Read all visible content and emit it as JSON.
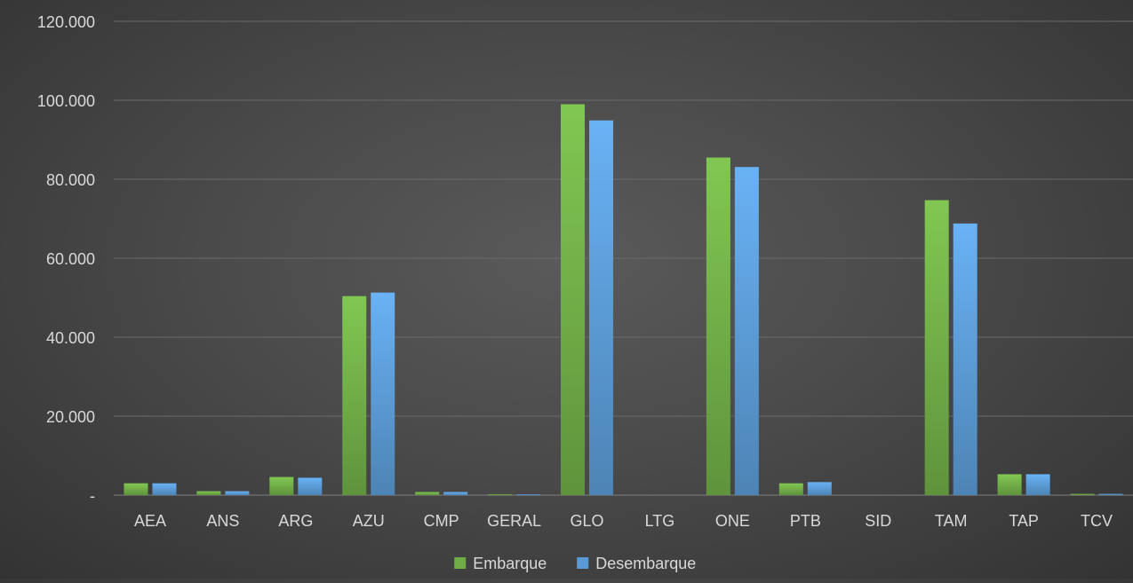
{
  "chart_data": {
    "type": "bar",
    "title": "",
    "xlabel": "",
    "ylabel": "",
    "categories": [
      "AEA",
      "ANS",
      "ARG",
      "AZU",
      "CMP",
      "GERAL",
      "GLO",
      "LTG",
      "ONE",
      "PTB",
      "SID",
      "TAM",
      "TAP",
      "TCV"
    ],
    "series": [
      {
        "name": "Embarque",
        "color": "#70ad47",
        "values": [
          3000,
          1000,
          4600,
          50400,
          800,
          200,
          99000,
          0,
          85500,
          3000,
          0,
          74700,
          5300,
          300
        ]
      },
      {
        "name": "Desembarque",
        "color": "#5b9bd5",
        "values": [
          3000,
          1000,
          4400,
          51300,
          800,
          200,
          94900,
          0,
          83100,
          3300,
          0,
          68800,
          5300,
          300
        ]
      }
    ],
    "ylim": [
      0,
      120000
    ],
    "yticks": [
      0,
      20000,
      40000,
      60000,
      80000,
      100000,
      120000
    ],
    "ytick_labels": [
      "-",
      "20.000",
      "40.000",
      "60.000",
      "80.000",
      "100.000",
      "120.000"
    ],
    "grid": true,
    "legend_position": "bottom"
  }
}
